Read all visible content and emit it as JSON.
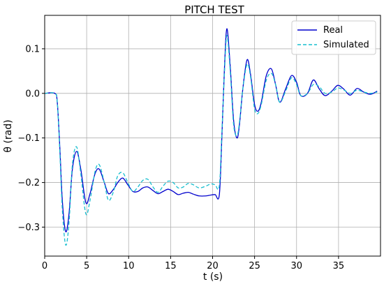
{
  "chart_data": {
    "type": "line",
    "title": "PITCH TEST",
    "xlabel": "t (s)",
    "ylabel": "θ (rad)",
    "xlim": [
      0,
      40
    ],
    "ylim": [
      -0.365,
      0.175
    ],
    "xticks": [
      0,
      5,
      10,
      15,
      20,
      25,
      30,
      35
    ],
    "yticks": [
      -0.3,
      -0.2,
      -0.1,
      0.0,
      0.1
    ],
    "xtick_labels": [
      "0",
      "5",
      "10",
      "15",
      "20",
      "25",
      "30",
      "35"
    ],
    "ytick_labels": [
      "−0.3",
      "−0.2",
      "−0.1",
      "0.0",
      "0.1"
    ],
    "grid": true,
    "legend_position": "top-right",
    "series": [
      {
        "name": "Real",
        "color": "#0000cd",
        "style": "solid",
        "x": [
          0,
          1.2,
          1.5,
          1.8,
          2.1,
          2.5,
          2.9,
          3.3,
          3.8,
          4.3,
          4.9,
          5.4,
          6.0,
          6.5,
          7.1,
          7.6,
          8.2,
          8.7,
          9.3,
          9.9,
          10.5,
          11.1,
          11.7,
          12.3,
          12.9,
          13.5,
          14.1,
          14.7,
          15.3,
          15.9,
          16.5,
          17.1,
          17.7,
          18.4,
          19.2,
          19.8,
          20.3,
          20.8,
          21.1,
          21.4,
          21.7,
          22.1,
          22.5,
          22.9,
          23.2,
          23.6,
          24.1,
          24.5,
          25.0,
          25.4,
          25.8,
          26.4,
          27.0,
          27.5,
          28.0,
          28.7,
          29.4,
          30.0,
          30.5,
          31.3,
          32.0,
          32.7,
          33.4,
          34.2,
          34.9,
          35.6,
          36.4,
          37.2,
          38.0,
          38.8,
          39.6
        ],
        "y": [
          0.0,
          0.0,
          -0.02,
          -0.12,
          -0.24,
          -0.31,
          -0.27,
          -0.17,
          -0.13,
          -0.17,
          -0.245,
          -0.225,
          -0.18,
          -0.17,
          -0.2,
          -0.225,
          -0.215,
          -0.2,
          -0.19,
          -0.205,
          -0.22,
          -0.22,
          -0.212,
          -0.21,
          -0.218,
          -0.225,
          -0.22,
          -0.215,
          -0.22,
          -0.227,
          -0.224,
          -0.222,
          -0.226,
          -0.23,
          -0.23,
          -0.228,
          -0.227,
          -0.228,
          -0.1,
          0.05,
          0.145,
          0.06,
          -0.06,
          -0.1,
          -0.07,
          0.01,
          0.075,
          0.045,
          -0.025,
          -0.04,
          -0.02,
          0.04,
          0.055,
          0.02,
          -0.02,
          0.01,
          0.04,
          0.025,
          -0.005,
          0.0,
          0.03,
          0.01,
          -0.005,
          0.005,
          0.018,
          0.01,
          -0.004,
          0.011,
          0.003,
          -0.002,
          0.005
        ]
      },
      {
        "name": "Simulated",
        "color": "#17becf",
        "style": "dashed",
        "x": [
          0,
          1.2,
          1.5,
          1.8,
          2.1,
          2.5,
          2.9,
          3.3,
          3.8,
          4.3,
          4.9,
          5.4,
          6.0,
          6.5,
          7.1,
          7.6,
          8.2,
          8.7,
          9.3,
          9.9,
          10.5,
          11.1,
          11.7,
          12.3,
          12.9,
          13.5,
          14.1,
          14.7,
          15.3,
          15.9,
          16.5,
          17.1,
          17.7,
          18.4,
          19.2,
          19.8,
          20.3,
          20.8,
          21.1,
          21.4,
          21.7,
          22.1,
          22.5,
          22.9,
          23.2,
          23.6,
          24.1,
          24.5,
          25.0,
          25.4,
          25.8,
          26.4,
          27.0,
          27.5,
          28.0,
          28.7,
          29.4,
          30.0,
          30.5,
          31.3,
          32.0,
          32.7,
          33.4,
          34.2,
          34.9,
          35.6,
          36.4,
          37.2,
          38.0,
          38.8,
          39.6
        ],
        "y": [
          0.0,
          0.0,
          -0.02,
          -0.13,
          -0.26,
          -0.34,
          -0.29,
          -0.16,
          -0.12,
          -0.18,
          -0.27,
          -0.24,
          -0.175,
          -0.16,
          -0.2,
          -0.24,
          -0.22,
          -0.185,
          -0.178,
          -0.2,
          -0.22,
          -0.21,
          -0.195,
          -0.193,
          -0.21,
          -0.222,
          -0.208,
          -0.197,
          -0.2,
          -0.212,
          -0.21,
          -0.202,
          -0.205,
          -0.212,
          -0.208,
          -0.203,
          -0.205,
          -0.208,
          -0.09,
          0.04,
          0.13,
          0.05,
          -0.07,
          -0.095,
          -0.065,
          0.01,
          0.065,
          0.04,
          -0.035,
          -0.045,
          -0.025,
          0.03,
          0.045,
          0.02,
          -0.02,
          0.005,
          0.035,
          0.02,
          -0.005,
          0.0,
          0.02,
          0.015,
          0.0,
          0.003,
          0.012,
          0.008,
          0.0,
          0.007,
          0.003,
          0.0,
          0.003
        ]
      }
    ]
  }
}
